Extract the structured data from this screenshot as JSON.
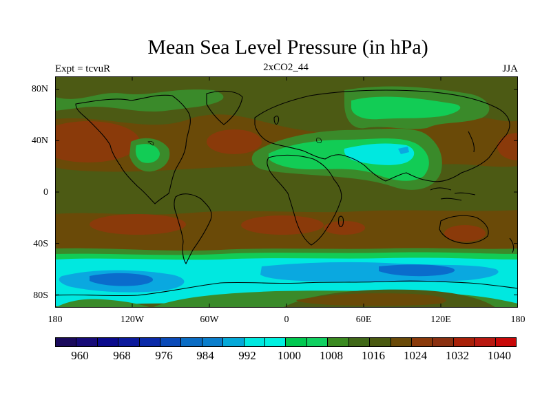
{
  "title": "Mean Sea Level Pressure (in hPa)",
  "subtitle_left": "Expt = tcvuR",
  "subtitle_center": "2xCO2_44",
  "subtitle_right": "JJA",
  "y_ticks": [
    "80N",
    "40N",
    "0",
    "40S",
    "80S"
  ],
  "x_ticks": [
    "180",
    "120W",
    "60W",
    "0",
    "60E",
    "120E",
    "180"
  ],
  "colorbar_labels": [
    "960",
    "968",
    "976",
    "984",
    "992",
    "1000",
    "1008",
    "1016",
    "1024",
    "1032",
    "1040"
  ],
  "colorbar_colors": [
    "#1a0a5c",
    "#170b78",
    "#0a0a8c",
    "#0c1a9c",
    "#0a2aa8",
    "#0a4ab8",
    "#0a6cc4",
    "#0a7ecc",
    "#04a8d8",
    "#00e8e0",
    "#00f0e0",
    "#00c850",
    "#10d060",
    "#3a8a20",
    "#406818",
    "#4a5a10",
    "#6a4a08",
    "#8a3a0a",
    "#8a3010",
    "#a82008",
    "#b81810",
    "#c80808"
  ],
  "colors": {
    "base": "#4c5a14",
    "green_mid": "#3a8a2a",
    "green_light": "#12cc55",
    "cyan": "#00e8e0",
    "blue_light": "#0aa8e0",
    "blue_dark": "#0a6ccc",
    "brown": "#6a4a08",
    "red_brown": "#8a3a0a"
  }
}
